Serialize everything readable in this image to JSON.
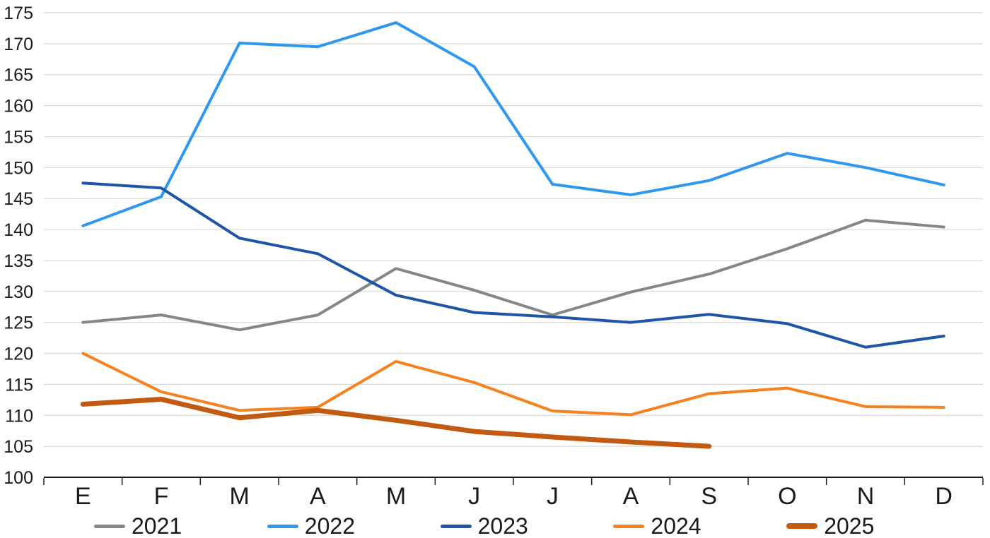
{
  "chart_data": {
    "type": "line",
    "title": "",
    "xlabel": "",
    "ylabel": "",
    "categories": [
      "E",
      "F",
      "M",
      "A",
      "M",
      "J",
      "J",
      "A",
      "S",
      "O",
      "N",
      "D"
    ],
    "series": [
      {
        "name": "2021",
        "color": "#868686",
        "thickness": "normal",
        "values": [
          125.0,
          126.2,
          123.8,
          126.2,
          133.7,
          130.2,
          126.2,
          129.9,
          132.8,
          136.9,
          141.5,
          140.4
        ]
      },
      {
        "name": "2022",
        "color": "#2E97F0",
        "thickness": "normal",
        "values": [
          140.6,
          145.3,
          170.1,
          169.5,
          173.4,
          166.3,
          147.3,
          145.6,
          147.9,
          152.3,
          150.0,
          147.2
        ]
      },
      {
        "name": "2023",
        "color": "#1E55A8",
        "thickness": "normal",
        "values": [
          147.5,
          146.7,
          138.6,
          136.1,
          129.4,
          126.6,
          125.9,
          125.0,
          126.3,
          124.8,
          121.0,
          122.8
        ]
      },
      {
        "name": "2024",
        "color": "#F5821E",
        "thickness": "normal",
        "values": [
          120.0,
          113.8,
          110.8,
          111.3,
          118.7,
          115.3,
          110.7,
          110.1,
          113.5,
          114.4,
          111.4,
          111.3
        ]
      },
      {
        "name": "2025",
        "color": "#C25A11",
        "thickness": "thick",
        "values": [
          111.8,
          112.6,
          109.6,
          110.8,
          109.2,
          107.4,
          106.5,
          105.7,
          105.0,
          null,
          null,
          null
        ]
      }
    ],
    "ylim": [
      100,
      175
    ],
    "yticks": [
      100,
      105,
      110,
      115,
      120,
      125,
      130,
      135,
      140,
      145,
      150,
      155,
      160,
      165,
      170,
      175
    ],
    "grid": true,
    "gridline_color": "#D8D8D8",
    "axis_color": "#1a1a1a",
    "legend_position": "bottom",
    "legend_entries": [
      "2021",
      "2022",
      "2023",
      "2024",
      "2025"
    ]
  }
}
